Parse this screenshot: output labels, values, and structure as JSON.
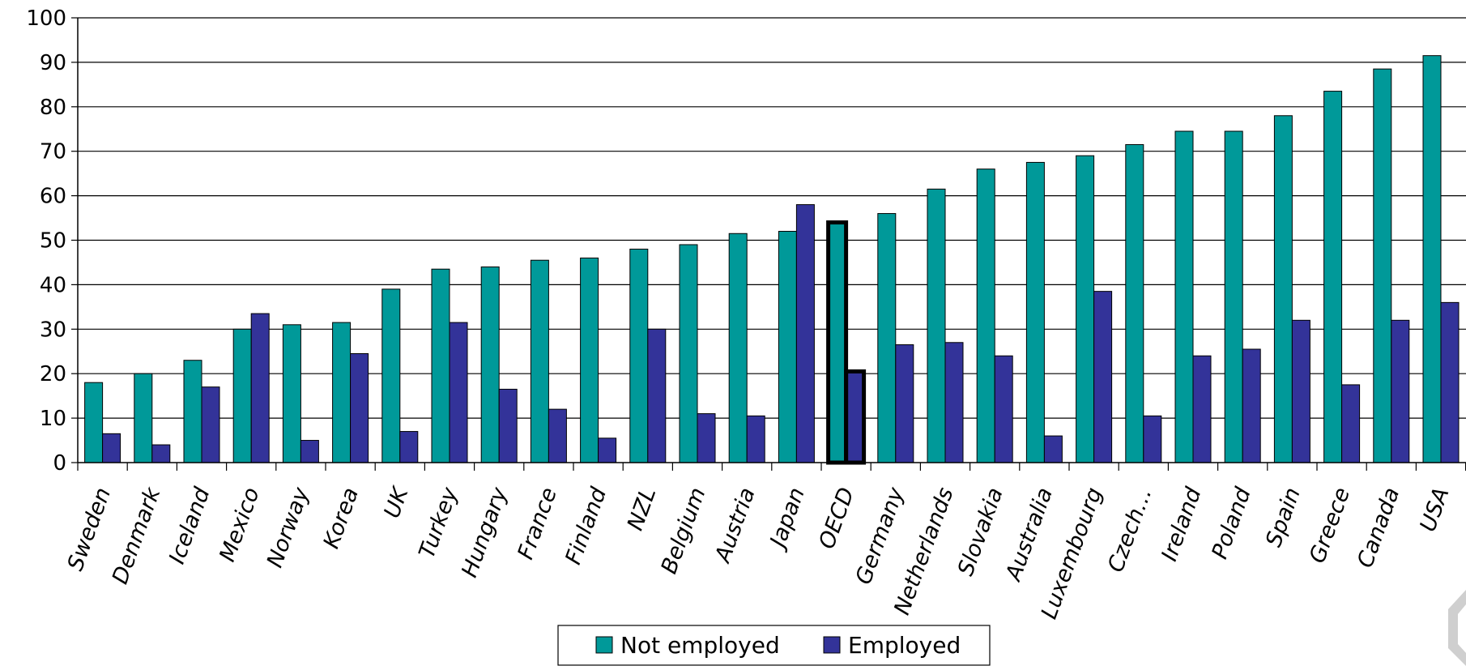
{
  "chart_data": {
    "type": "bar",
    "title": "",
    "xlabel": "",
    "ylabel": "",
    "ylim": [
      0,
      100
    ],
    "yticks": [
      0,
      10,
      20,
      30,
      40,
      50,
      60,
      70,
      80,
      90,
      100
    ],
    "grid": true,
    "legend_position": "bottom-center",
    "highlighted_category": "OECD",
    "categories": [
      "Sweden",
      "Denmark",
      "Iceland",
      "Mexico",
      "Norway",
      "Korea",
      "UK",
      "Turkey",
      "Hungary",
      "France",
      "Finland",
      "NZL",
      "Belgium",
      "Austria",
      "Japan",
      "OECD",
      "Germany",
      "Netherlands",
      "Slovakia",
      "Australia",
      "Luxembourg",
      "Czech…",
      "Ireland",
      "Poland",
      "Spain",
      "Greece",
      "Canada",
      "USA"
    ],
    "series": [
      {
        "name": "Not employed",
        "color": "#009999",
        "values": [
          18,
          20,
          23,
          30,
          31,
          31.5,
          39,
          43.5,
          44,
          45.5,
          46,
          48,
          49,
          51.5,
          52,
          54,
          56,
          61.5,
          66,
          67.5,
          69,
          71.5,
          74.5,
          74.5,
          78,
          83.5,
          88.5,
          91.5
        ]
      },
      {
        "name": "Employed",
        "color": "#333399",
        "values": [
          6.5,
          4,
          17,
          33.5,
          5,
          24.5,
          7,
          31.5,
          16.5,
          12,
          5.5,
          30,
          11,
          10.5,
          58,
          20.5,
          26.5,
          27,
          24,
          6,
          38.5,
          10.5,
          24,
          25.5,
          32,
          17.5,
          32,
          36
        ]
      }
    ]
  }
}
